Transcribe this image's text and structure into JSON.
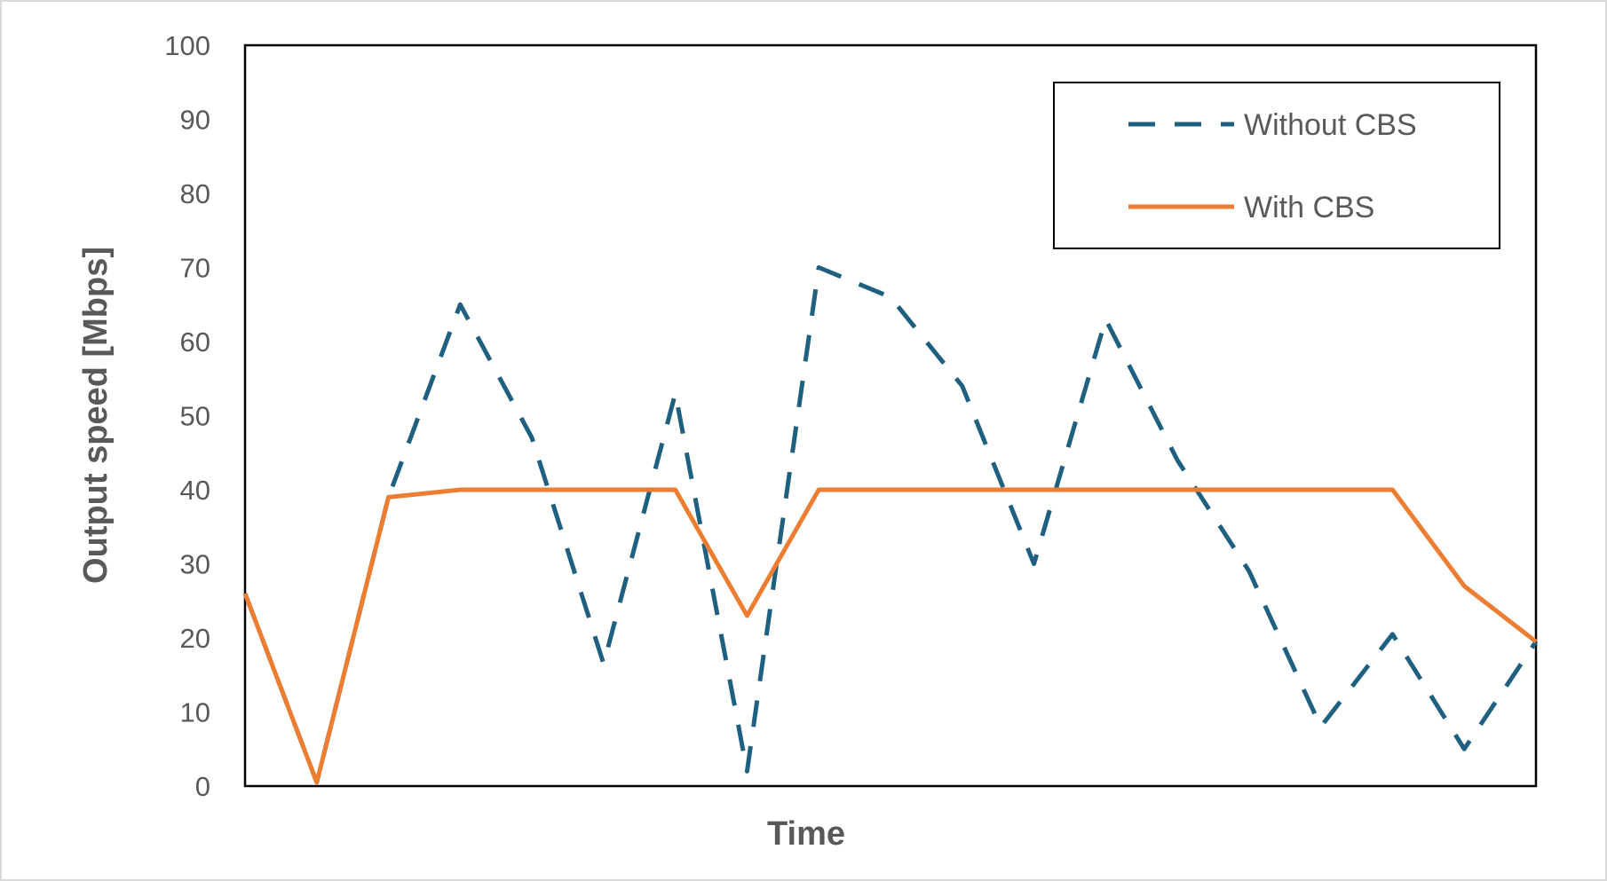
{
  "chart_data": {
    "type": "line",
    "title": "",
    "xlabel": "Time",
    "ylabel": "Output speed [Mbps]",
    "ylim": [
      0,
      100
    ],
    "yticks": [
      "0",
      "10",
      "20",
      "30",
      "40",
      "50",
      "60",
      "70",
      "80",
      "90",
      "100"
    ],
    "grid": false,
    "legend_position": "top-right",
    "x": [
      0,
      1,
      2,
      3,
      4,
      5,
      6,
      7,
      8,
      9,
      10,
      11,
      12,
      13,
      14,
      15,
      16,
      17,
      18
    ],
    "series": [
      {
        "name": "Without CBS",
        "style": "dashed",
        "color": "#1f6080",
        "values": [
          26,
          0.5,
          39,
          65,
          47,
          16.5,
          53,
          2,
          70,
          66,
          54,
          30,
          63,
          44,
          29,
          8,
          20.5,
          5,
          19.5
        ]
      },
      {
        "name": "With CBS",
        "style": "solid",
        "color": "#ed7d31",
        "values": [
          26,
          0.5,
          39,
          40,
          40,
          40,
          40,
          23,
          40,
          40,
          40,
          40,
          40,
          40,
          40,
          40,
          40,
          27,
          19.5
        ]
      }
    ]
  }
}
